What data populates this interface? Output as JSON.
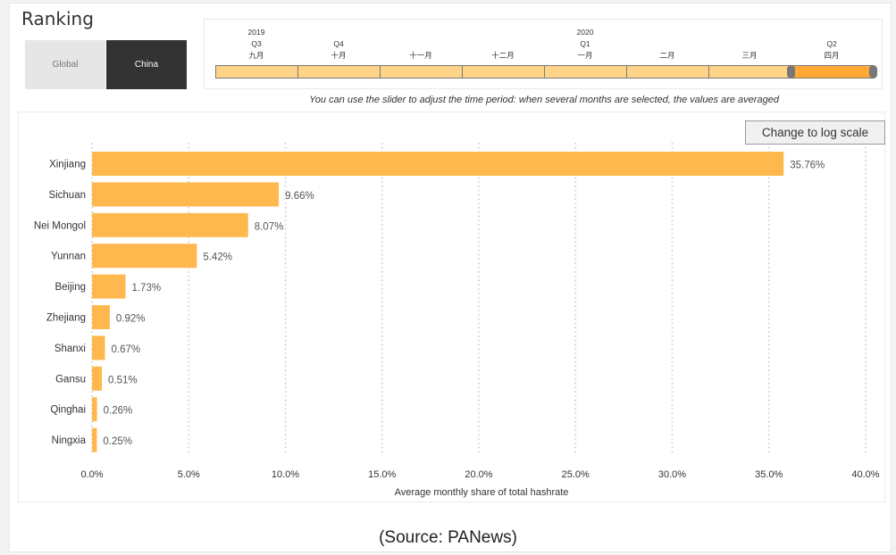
{
  "page": {
    "title": "Ranking",
    "source": "(Source: PANews)"
  },
  "toggle": {
    "options": [
      "Global",
      "China"
    ],
    "selected": "China"
  },
  "timeline": {
    "segments": [
      {
        "top": "2019",
        "quarter": "Q3",
        "month": "九月"
      },
      {
        "top": "",
        "quarter": "Q4",
        "month": "十月"
      },
      {
        "top": "",
        "quarter": "",
        "month": "十一月"
      },
      {
        "top": "",
        "quarter": "",
        "month": "十二月"
      },
      {
        "top": "2020",
        "quarter": "Q1",
        "month": "一月"
      },
      {
        "top": "",
        "quarter": "",
        "month": "二月"
      },
      {
        "top": "",
        "quarter": "",
        "month": "三月"
      },
      {
        "top": "",
        "quarter": "Q2",
        "month": "四月"
      }
    ],
    "selected_index": 7,
    "hint": "You can use the slider to adjust the time period: when several months are selected, the values are averaged"
  },
  "controls": {
    "log_scale_label": "Change to log scale"
  },
  "colors": {
    "bar": "#ffb84d",
    "grid": "#cccccc",
    "toggle_active": "#333333",
    "slider_selected": "#ffa934",
    "slider_unselected": "#ffd388"
  },
  "chart_data": {
    "type": "bar",
    "orientation": "horizontal",
    "categories": [
      "Xinjiang",
      "Sichuan",
      "Nei Mongol",
      "Yunnan",
      "Beijing",
      "Zhejiang",
      "Shanxi",
      "Gansu",
      "Qinghai",
      "Ningxia"
    ],
    "values": [
      35.76,
      9.66,
      8.07,
      5.42,
      1.73,
      0.92,
      0.67,
      0.51,
      0.26,
      0.25
    ],
    "value_labels": [
      "35.76%",
      "9.66%",
      "8.07%",
      "5.42%",
      "1.73%",
      "0.92%",
      "0.67%",
      "0.51%",
      "0.26%",
      "0.25%"
    ],
    "xlim": [
      0,
      40
    ],
    "xticks": [
      0,
      5,
      10,
      15,
      20,
      25,
      30,
      35,
      40
    ],
    "xtick_labels": [
      "0.0%",
      "5.0%",
      "10.0%",
      "15.0%",
      "20.0%",
      "25.0%",
      "30.0%",
      "35.0%",
      "40.0%"
    ],
    "xlabel": "Average monthly share of total hashrate",
    "ylabel": "",
    "grid": "vertical dotted",
    "legend": "none"
  }
}
